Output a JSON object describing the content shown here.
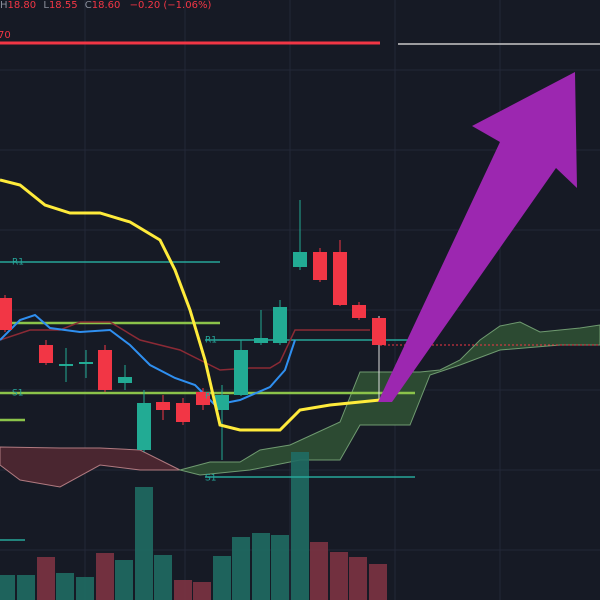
{
  "header": {
    "ohlc": [
      {
        "label": "H",
        "value": "18.80"
      },
      {
        "label": "L",
        "value": "18.55"
      },
      {
        "label": "C",
        "value": "18.60"
      }
    ],
    "change": "−0.20 (−1.06%)"
  },
  "level_label": "70",
  "pivots": [
    {
      "label": "R1"
    },
    {
      "label": "R1"
    },
    {
      "label": "S1"
    },
    {
      "label": "P"
    },
    {
      "label": "S1"
    }
  ]
}
